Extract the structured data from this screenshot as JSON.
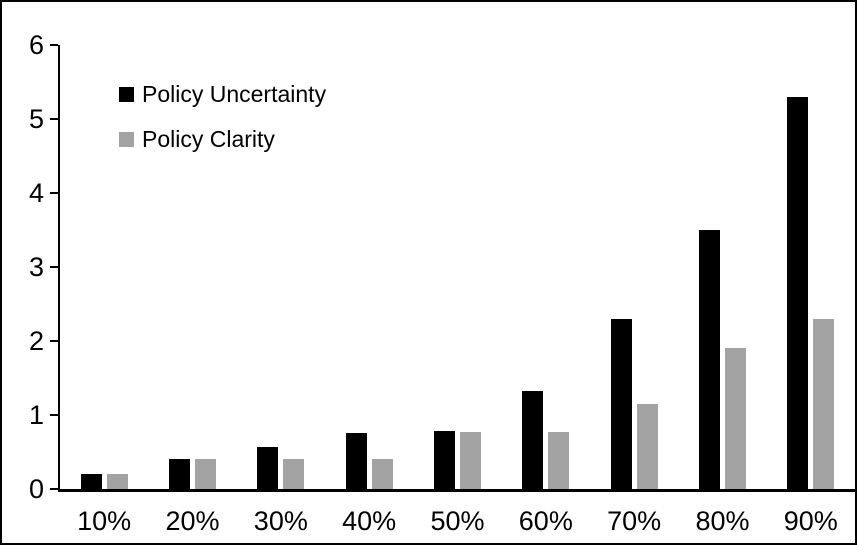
{
  "chart_data": {
    "type": "bar",
    "title": "",
    "xlabel": "",
    "ylabel": "",
    "categories": [
      "10%",
      "20%",
      "30%",
      "40%",
      "50%",
      "60%",
      "70%",
      "80%",
      "90%"
    ],
    "series": [
      {
        "name": "Policy Uncertainty",
        "color": "#000000",
        "values": [
          0.2,
          0.4,
          0.57,
          0.76,
          0.78,
          1.33,
          2.3,
          3.5,
          5.3
        ]
      },
      {
        "name": "Policy Clarity",
        "color": "#a3a3a3",
        "values": [
          0.2,
          0.4,
          0.4,
          0.4,
          0.77,
          0.77,
          1.15,
          1.9,
          2.3
        ]
      }
    ],
    "ylim": [
      0,
      6
    ],
    "yticks": [
      "0",
      "1",
      "2",
      "3",
      "4",
      "5",
      "6"
    ],
    "grid": false,
    "legend_position": "top-left"
  },
  "colors": {
    "axis": "#000000",
    "frame_border": "#000000",
    "background": "#ffffff"
  }
}
